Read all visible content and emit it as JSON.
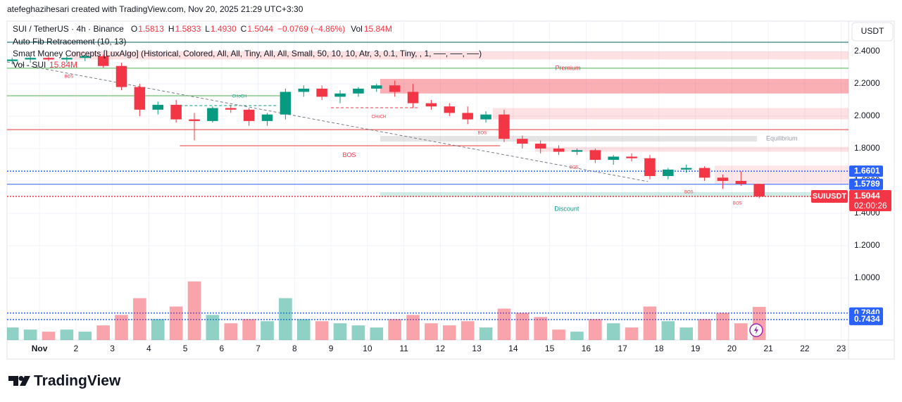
{
  "header": {
    "credit": "atefeghazihesari created with TradingView.com, Nov 20, 2025 21:29 UTC+3:30",
    "symbol": "SUI / TetherUS · 4h · Binance",
    "ohlc": [
      {
        "key": "O",
        "value": "1.5813"
      },
      {
        "key": "H",
        "value": "1.5833"
      },
      {
        "key": "L",
        "value": "1.4930"
      },
      {
        "key": "C",
        "value": "1.5044"
      }
    ],
    "change": "−0.0769 (−4.86%)",
    "vol_key": "Vol",
    "vol_value": "15.84M",
    "indicators": [
      "Auto Fib Retracement (10, 13)",
      "Smart Money Concepts [LuxAlgo] (Historical, Colored, All, All, Tiny, All, All, Small, 50, 10, 10, Atr, 3, 0.1, Tiny, , 1, ──, ──, ──)"
    ],
    "vol_indicator": "Vol · SUI",
    "vol_indicator_value": "15.84M",
    "currency": "USDT"
  },
  "footer": {
    "brand": "TradingView"
  },
  "chart_data": {
    "type": "candlestick",
    "x": [
      0.25,
      0.75,
      1.25,
      1.75,
      2.25,
      2.75,
      3.25,
      3.75,
      4.25,
      4.75,
      5.25,
      5.75,
      6.25,
      6.75,
      7.25,
      7.75,
      8.25,
      8.75,
      9.25,
      9.75,
      10.25,
      10.75,
      11.25,
      11.75,
      12.25,
      12.75,
      13.25,
      13.75,
      14.25,
      14.75,
      15.25,
      15.75,
      16.25,
      16.75,
      17.25,
      17.75,
      18.25,
      18.75,
      19.25,
      19.75,
      20.25,
      20.75
    ],
    "open": [
      2.34,
      2.35,
      2.36,
      2.35,
      2.36,
      2.37,
      2.31,
      2.18,
      2.04,
      2.07,
      1.98,
      1.97,
      2.05,
      2.04,
      1.97,
      2.01,
      2.15,
      2.17,
      2.12,
      2.14,
      2.17,
      2.19,
      2.15,
      2.08,
      2.06,
      2.02,
      1.98,
      2.01,
      1.86,
      1.83,
      1.8,
      1.78,
      1.79,
      1.73,
      1.75,
      1.74,
      1.63,
      1.67,
      1.68,
      1.62,
      1.6,
      1.5813
    ],
    "high": [
      2.36,
      2.37,
      2.38,
      2.37,
      2.38,
      2.38,
      2.33,
      2.2,
      2.09,
      2.1,
      2.02,
      2.06,
      2.07,
      2.05,
      2.02,
      2.17,
      2.19,
      2.19,
      2.16,
      2.18,
      2.2,
      2.22,
      2.2,
      2.1,
      2.08,
      2.06,
      2.03,
      2.04,
      1.88,
      1.85,
      1.82,
      1.8,
      1.8,
      1.76,
      1.77,
      1.76,
      1.68,
      1.7,
      1.69,
      1.64,
      1.66,
      1.5833
    ],
    "low": [
      2.32,
      2.33,
      2.34,
      2.33,
      2.34,
      2.3,
      2.16,
      2.0,
      2.01,
      1.96,
      1.85,
      1.96,
      2.02,
      1.94,
      1.94,
      1.98,
      2.12,
      2.1,
      2.08,
      2.12,
      2.15,
      2.12,
      2.05,
      2.04,
      2.0,
      1.95,
      1.96,
      1.84,
      1.8,
      1.77,
      1.76,
      1.76,
      1.71,
      1.7,
      1.72,
      1.61,
      1.61,
      1.65,
      1.6,
      1.55,
      1.57,
      1.493
    ],
    "close": [
      2.35,
      2.36,
      2.35,
      2.36,
      2.37,
      2.31,
      2.18,
      2.04,
      2.07,
      1.98,
      1.97,
      2.05,
      2.04,
      1.97,
      2.01,
      2.15,
      2.17,
      2.12,
      2.14,
      2.17,
      2.19,
      2.15,
      2.08,
      2.06,
      2.02,
      1.98,
      2.01,
      1.86,
      1.83,
      1.8,
      1.78,
      1.79,
      1.73,
      1.75,
      1.74,
      1.63,
      1.67,
      1.68,
      1.62,
      1.6,
      1.5813,
      1.5044
    ],
    "volume": [
      6,
      5,
      4,
      5,
      4,
      7,
      12,
      20,
      10,
      16,
      28,
      12,
      8,
      10,
      9,
      20,
      10,
      9,
      8,
      7,
      6,
      10,
      12,
      8,
      7,
      9,
      6,
      15,
      13,
      11,
      5,
      4,
      10,
      8,
      6,
      16,
      9,
      6,
      10,
      13,
      8,
      15.84
    ],
    "up_color": "#089981",
    "down_color": "#f23645",
    "xlim": [
      0.11,
      23.2
    ],
    "xticks": [
      {
        "value": 1,
        "label": "Nov"
      },
      2,
      3,
      4,
      5,
      6,
      7,
      8,
      9,
      10,
      11,
      12,
      13,
      14,
      15,
      16,
      17,
      18,
      19,
      20,
      21,
      22,
      23
    ],
    "ylim": [
      0.617,
      2.587
    ],
    "yticks": [
      {
        "value": 2.4,
        "label": "2.4000"
      },
      {
        "value": 2.2,
        "label": "2.2000"
      },
      {
        "value": 2,
        "label": "2.0000"
      },
      {
        "value": 1.8,
        "label": "1.8000"
      },
      {
        "value": 1.6,
        "label": "1.6000"
      },
      {
        "value": 1.4,
        "label": "1.4000"
      },
      {
        "value": 1.2,
        "label": "1.2000"
      },
      {
        "value": 1,
        "label": "1.0000"
      }
    ],
    "volume_lim": [
      0,
      40
    ],
    "grid": true,
    "zones": [
      {
        "from": 1.85,
        "to": 23.2,
        "top": 2.4,
        "bottom": 2.35,
        "color": "#f2364526"
      },
      {
        "from": 10.35,
        "to": 23.2,
        "top": 2.23,
        "bottom": 2.14,
        "color": "#f2364566"
      },
      {
        "from": 13.44,
        "to": 23.2,
        "top": 2.05,
        "bottom": 1.98,
        "color": "#f2364526"
      },
      {
        "from": 10.35,
        "to": 20.69,
        "top": 1.878,
        "bottom": 1.843,
        "color": "#78787833"
      },
      {
        "from": 14.6,
        "to": 23.2,
        "top": 1.81,
        "bottom": 1.78,
        "color": "#f2364526"
      },
      {
        "from": 19.53,
        "to": 23.2,
        "top": 1.695,
        "bottom": 1.578,
        "color": "#f2364520"
      },
      {
        "from": 10.35,
        "to": 23.2,
        "top": 1.53,
        "bottom": 1.5,
        "color": "#08998133"
      }
    ],
    "levels": [
      {
        "price": 2.4565,
        "color": "#006064",
        "style": "solid"
      },
      {
        "price": 2.296,
        "color": "#4caf50",
        "style": "solid"
      },
      {
        "price": 2.126,
        "color": "#4caf50",
        "style": "solid",
        "from": 0.11,
        "to": 7.65
      },
      {
        "price": 1.917,
        "color": "#e53935",
        "style": "solid"
      },
      {
        "price": 1.817,
        "color": "#e53935",
        "style": "solid",
        "from": 4.85,
        "to": 13.64
      },
      {
        "price": 2.065,
        "color": "#089981",
        "style": "dashed",
        "from": 4.85,
        "to": 7.5
      },
      {
        "price": 2.052,
        "color": "#f23645",
        "style": "dashed",
        "from": 9.0,
        "to": 11.4
      },
      {
        "price": 1.6601,
        "color": "#2962ff",
        "style": "dotted"
      },
      {
        "price": 1.5789,
        "color": "#2962ff",
        "style": "solid"
      },
      {
        "price": 1.5044,
        "color": "#f23645",
        "style": "dotted"
      },
      {
        "price": 0.784,
        "color": "#2962ff",
        "style": "dotted"
      },
      {
        "price": 0.7434,
        "color": "#2962ff",
        "style": "dotted"
      }
    ],
    "trendline": {
      "x": [
        0.11,
        17.7
      ],
      "y": [
        2.335,
        1.596
      ],
      "color": "#787b86"
    },
    "annotations": [
      {
        "text": "Premium",
        "x": 15.5,
        "y": 2.296,
        "color": "#f23645",
        "size": 9
      },
      {
        "text": "Equilibrium",
        "x": 21.37,
        "y": 1.861,
        "color": "#9598a1",
        "size": 9
      },
      {
        "text": "Discount",
        "x": 15.47,
        "y": 1.426,
        "color": "#089981",
        "size": 9
      },
      {
        "text": "BOS",
        "x": 1.81,
        "y": 2.243,
        "color": "#f23645",
        "size": 6
      },
      {
        "text": "CHoCH",
        "x": 6.49,
        "y": 2.122,
        "color": "#089981",
        "size": 6
      },
      {
        "text": "CHoCH",
        "x": 10.31,
        "y": 1.996,
        "color": "#f23645",
        "size": 6
      },
      {
        "text": "BOS",
        "x": 13.15,
        "y": 1.896,
        "color": "#f23645",
        "size": 6
      },
      {
        "text": "BOS",
        "x": 9.5,
        "y": 1.757,
        "color": "#f23645",
        "size": 9
      },
      {
        "text": "BOS",
        "x": 15.67,
        "y": 1.683,
        "color": "#f23645",
        "size": 6
      },
      {
        "text": "BOS",
        "x": 18.82,
        "y": 1.53,
        "color": "#f23645",
        "size": 6
      },
      {
        "text": "BOS",
        "x": 20.15,
        "y": 1.461,
        "color": "#f23645",
        "size": 6
      }
    ],
    "price_labels": [
      {
        "value": 1.6601,
        "label": "1.6601",
        "color": "#2962ff"
      },
      {
        "value": 1.5789,
        "label": "1.5789",
        "color": "#2962ff"
      },
      {
        "value": 0.784,
        "label": "0.7840",
        "color": "#2962ff"
      },
      {
        "value": 0.7434,
        "label": "0.7434",
        "color": "#2962ff"
      }
    ],
    "last_price": {
      "symbol": "SUIUSDT",
      "value": 1.5044,
      "countdown": "02:00:26",
      "color": "#f23645"
    }
  }
}
